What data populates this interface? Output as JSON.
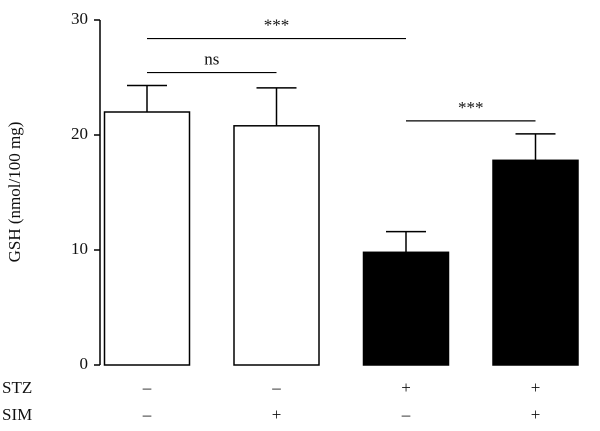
{
  "chart_data": {
    "type": "bar",
    "y_label": "GSH (nmol/100 mg)",
    "categories": [
      null,
      null,
      null,
      null
    ],
    "values": [
      22,
      20.8,
      9.8,
      17.8
    ],
    "errors": [
      2.3,
      3.3,
      1.8,
      2.3
    ],
    "colors": [
      "#ffffff",
      "#ffffff",
      "#000000",
      "#000000"
    ],
    "ylim": [
      0,
      30
    ],
    "yticks": [
      0,
      10,
      20,
      30
    ],
    "treatments": [
      {
        "name": "STZ",
        "values": [
          "–",
          "–",
          "+",
          "+"
        ]
      },
      {
        "name": "SIM",
        "values": [
          "–",
          "+",
          "–",
          "+"
        ]
      }
    ],
    "annotations": [
      {
        "text": "ns",
        "from": 0,
        "to": 1
      },
      {
        "text": "***",
        "from": 0,
        "to": 2
      },
      {
        "text": "***",
        "from": 2,
        "to": 3
      }
    ]
  }
}
